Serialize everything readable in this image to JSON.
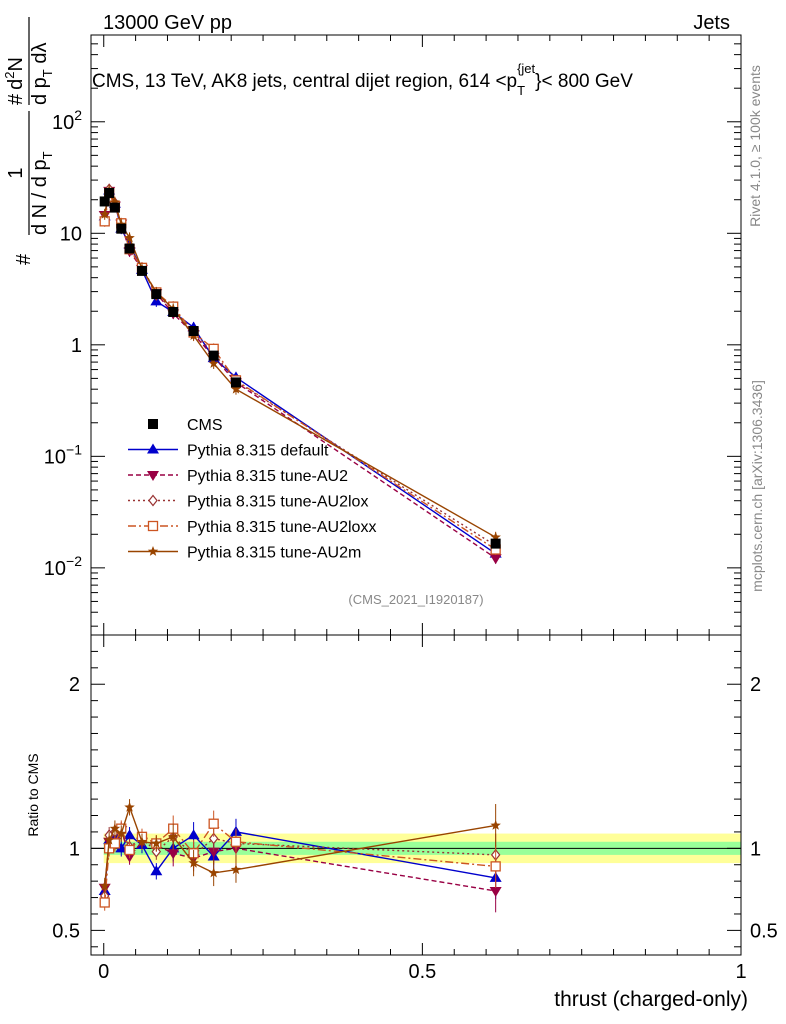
{
  "header": {
    "left": "13000 GeV pp",
    "right": "Jets"
  },
  "chart_data": [
    {
      "type": "line",
      "title": "CMS, 13 TeV, AK8 jets, central dijet region, 614 <p_T^{jet}< 800 GeV",
      "title_parts": {
        "main": "CMS, 13 TeV, AK8 jets, central dijet region, 614 <p",
        "sub": "T",
        "sup": "{jet",
        "tail": "}< 800 GeV"
      },
      "ylabel_parts": {
        "a": "# ",
        "frac1_num": "1",
        "frac1_den": "d N / d p",
        "frac1_den_sub": "T",
        "frac2_num_hash": "#",
        "frac2_num": "d",
        "frac2_num_sup": "2",
        "frac2_num_tail": "N",
        "frac2_den": "d p",
        "frac2_den_sub": "T",
        "frac2_den_tail": " dλ"
      },
      "xlabel": "thrust (charged-only)",
      "yscale": "log",
      "ylim": [
        0.0025,
        600
      ],
      "xlim": [
        -0.02,
        1.0
      ],
      "yticks": [
        {
          "value": 0.01,
          "base": "10",
          "exp": "−2"
        },
        {
          "value": 0.1,
          "base": "10",
          "exp": "−1"
        },
        {
          "value": 1,
          "base": "1",
          "exp": ""
        },
        {
          "value": 10,
          "base": "10",
          "exp": ""
        },
        {
          "value": 100,
          "base": "10",
          "exp": "2"
        }
      ],
      "x": [
        0.0015,
        0.0085,
        0.0175,
        0.0275,
        0.0405,
        0.06,
        0.0825,
        0.109,
        0.141,
        0.1725,
        0.2075,
        0.615
      ],
      "data": {
        "name": "CMS",
        "values": [
          19.3,
          23.0,
          17.0,
          11.0,
          7.3,
          4.6,
          2.85,
          1.97,
          1.33,
          0.8,
          0.46,
          0.0165
        ],
        "color": "#000000"
      },
      "series": [
        {
          "name": "Pythia 8.315 default",
          "values": [
            14.2,
            24.2,
            18.4,
            11.0,
            7.9,
            4.7,
            2.45,
            1.97,
            1.43,
            0.76,
            0.51,
            0.0134
          ],
          "color": "#0000cc",
          "marker": "triangle-up",
          "dash": ""
        },
        {
          "name": "Pythia 8.315 tune-AU2",
          "values": [
            14.6,
            24.0,
            17.7,
            12.2,
            6.9,
            4.8,
            2.9,
            1.91,
            1.25,
            0.78,
            0.46,
            0.0122
          ],
          "color": "#990044",
          "marker": "triangle-down",
          "dash": "5,3"
        },
        {
          "name": "Pythia 8.315 tune-AU2lox",
          "values": [
            13.7,
            24.8,
            18.7,
            12.1,
            7.4,
            4.9,
            2.8,
            2.1,
            1.28,
            0.85,
            0.47,
            0.0158
          ],
          "color": "#993333",
          "marker": "diamond",
          "dash": "2,3"
        },
        {
          "name": "Pythia 8.315 tune-AU2loxx",
          "values": [
            12.8,
            23.0,
            17.5,
            12.3,
            7.2,
            4.9,
            2.95,
            2.2,
            1.29,
            0.92,
            0.48,
            0.0146
          ],
          "color": "#cc5522",
          "marker": "square-open",
          "dash": "8,3,2,3"
        },
        {
          "name": "Pythia 8.315 tune-AU2m",
          "values": [
            14.8,
            24.2,
            19.0,
            12.0,
            9.1,
            4.8,
            2.95,
            2.1,
            1.21,
            0.68,
            0.4,
            0.0188
          ],
          "color": "#994400",
          "marker": "star",
          "dash": ""
        }
      ],
      "annotation": "(CMS_2021_I1920187)"
    },
    {
      "type": "line",
      "title": "",
      "ylabel": "Ratio to CMS",
      "xlabel": "thrust (charged-only)",
      "ylim": [
        0.35,
        2.3
      ],
      "xlim": [
        -0.02,
        1.0
      ],
      "yticks": [
        0.5,
        1,
        2
      ],
      "xticks": [
        0,
        0.5,
        1
      ],
      "band_outer": [
        0.91,
        1.09
      ],
      "band_inner": [
        0.96,
        1.04
      ],
      "series": [
        {
          "name": "Pythia 8.315 default",
          "values": [
            0.74,
            1.05,
            1.08,
            1.0,
            1.08,
            1.02,
            0.86,
            1.0,
            1.08,
            0.95,
            1.1,
            0.82
          ]
        },
        {
          "name": "Pythia 8.315 tune-AU2",
          "values": [
            0.76,
            1.04,
            1.04,
            1.11,
            0.95,
            1.04,
            1.02,
            0.97,
            0.94,
            0.98,
            1.0,
            0.74
          ]
        },
        {
          "name": "Pythia 8.315 tune-AU2lox",
          "values": [
            0.71,
            1.08,
            1.1,
            1.1,
            1.01,
            1.06,
            0.98,
            1.07,
            0.96,
            1.06,
            1.03,
            0.96
          ]
        },
        {
          "name": "Pythia 8.315 tune-AU2loxx",
          "values": [
            0.67,
            1.0,
            1.03,
            1.12,
            0.99,
            1.07,
            1.03,
            1.12,
            0.97,
            1.15,
            1.04,
            0.89
          ]
        },
        {
          "name": "Pythia 8.315 tune-AU2m",
          "values": [
            0.77,
            1.05,
            1.12,
            1.09,
            1.25,
            1.04,
            1.03,
            1.07,
            0.91,
            0.85,
            0.87,
            1.14
          ]
        }
      ]
    }
  ],
  "side_text": {
    "rivet": "Rivet 4.1.0, ≥ 100k events",
    "mcplots": "mcplots.cern.ch [arXiv:1306.3436]"
  }
}
